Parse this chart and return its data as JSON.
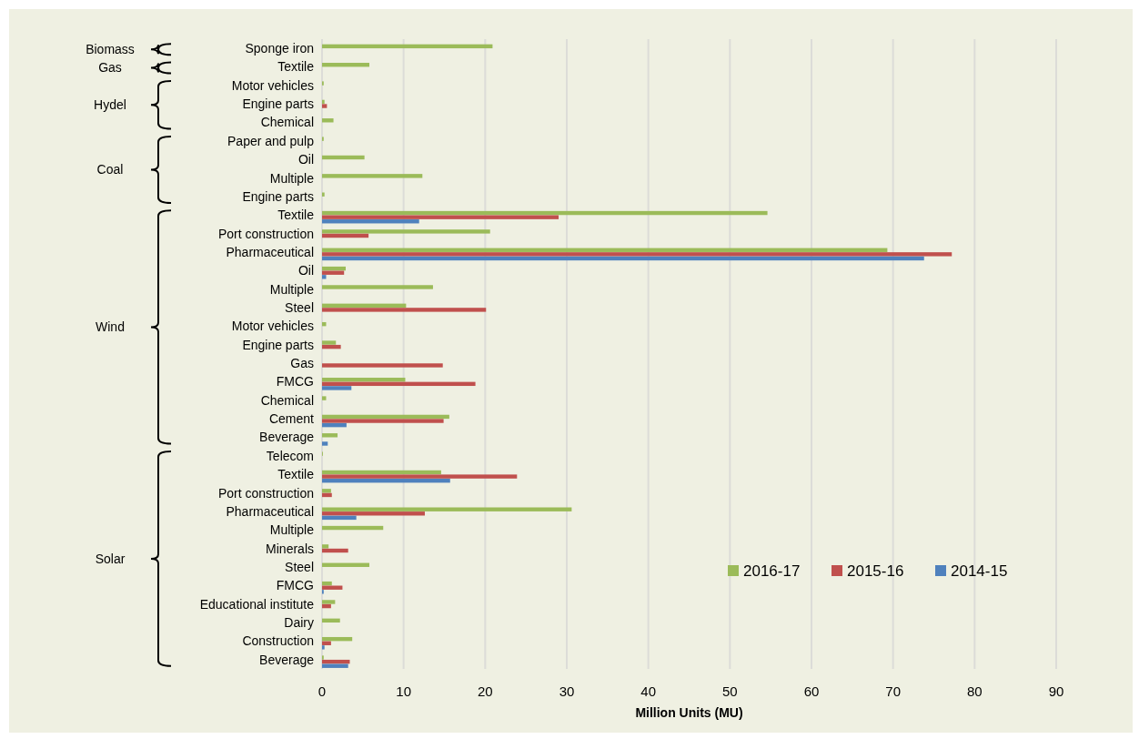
{
  "chart_data": {
    "type": "bar",
    "orientation": "horizontal",
    "xlabel": "Million Units (MU)",
    "categories": [
      "Sponge iron",
      "Textile",
      "Motor vehicles",
      "Engine parts",
      "Chemical",
      "Paper and pulp",
      "Oil",
      "Multiple",
      "Engine parts",
      "Textile",
      "Port construction",
      "Pharmaceutical",
      "Oil",
      "Multiple",
      "Steel",
      "Motor vehicles",
      "Engine parts",
      "Gas",
      "FMCG",
      "Chemical",
      "Cement",
      "Beverage",
      "Telecom",
      "Textile",
      "Port construction",
      "Pharmaceutical",
      "Multiple",
      "Minerals",
      "Steel",
      "FMCG",
      "Educational institute",
      "Dairy",
      "Construction",
      "Beverage"
    ],
    "series": [
      {
        "name": "2016-17",
        "color": "#9bbb59",
        "values": [
          20.9,
          5.8,
          0.2,
          0.3,
          1.4,
          0.2,
          5.2,
          12.3,
          0.3,
          54.6,
          20.6,
          69.3,
          2.9,
          13.6,
          10.3,
          0.5,
          1.7,
          null,
          10.2,
          0.5,
          15.6,
          1.9,
          0.1,
          14.6,
          1.1,
          30.6,
          7.5,
          0.8,
          5.8,
          1.2,
          1.6,
          2.2,
          3.7,
          0.2
        ]
      },
      {
        "name": "2015-16",
        "color": "#c0504d",
        "values": [
          null,
          null,
          null,
          0.6,
          null,
          null,
          null,
          null,
          null,
          29.0,
          5.7,
          77.2,
          2.7,
          null,
          20.1,
          null,
          2.3,
          14.8,
          18.8,
          null,
          14.9,
          null,
          null,
          23.9,
          1.2,
          12.6,
          null,
          3.2,
          null,
          2.5,
          1.1,
          null,
          1.1,
          3.4
        ]
      },
      {
        "name": "2014-15",
        "color": "#4f81bd",
        "values": [
          null,
          null,
          null,
          null,
          null,
          null,
          null,
          null,
          null,
          11.9,
          null,
          73.8,
          0.5,
          null,
          null,
          null,
          null,
          null,
          3.6,
          null,
          3.0,
          0.7,
          null,
          15.7,
          null,
          4.2,
          null,
          null,
          null,
          0.2,
          null,
          null,
          0.3,
          3.2
        ]
      }
    ],
    "xlim": [
      0,
      90
    ],
    "xticks": [
      0,
      10,
      20,
      30,
      40,
      50,
      60,
      70,
      80,
      90
    ],
    "grid": "x",
    "legend": "right",
    "annotations": [
      "Biomass",
      "Gas",
      "Hydel",
      "Coal",
      "Wind",
      "Solar"
    ]
  }
}
